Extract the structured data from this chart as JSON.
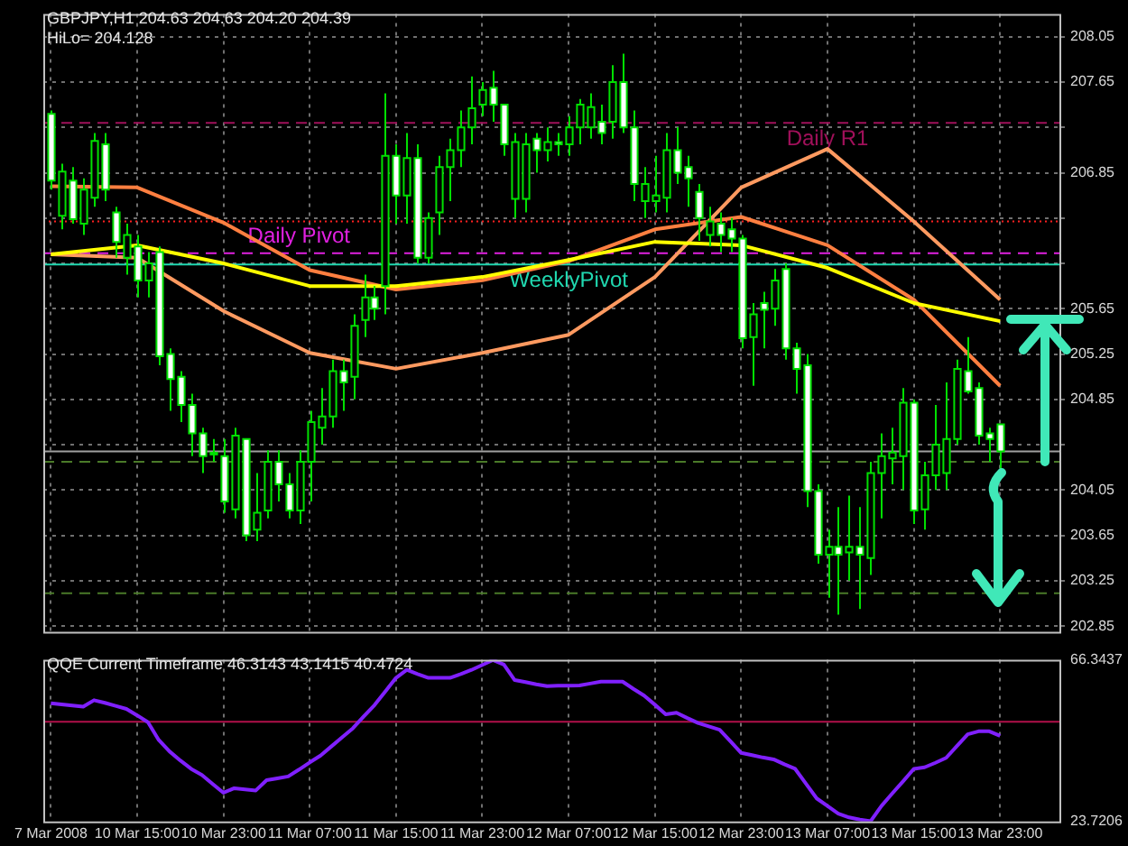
{
  "chart_data": [
    {
      "type": "candlestick",
      "title": "GBPJPY,H1  204.63 204.63 204.20 204.39",
      "annotations": [
        "HiLo= 204.128"
      ],
      "categories": [
        "7 Mar 2008",
        null,
        null,
        null,
        null,
        null,
        null,
        null,
        "10 Mar 15:00",
        null,
        null,
        null,
        null,
        null,
        null,
        null,
        "10 Mar 23:00",
        null,
        null,
        null,
        null,
        null,
        null,
        null,
        "11 Mar 07:00",
        null,
        null,
        null,
        null,
        null,
        null,
        null,
        "11 Mar 15:00",
        null,
        null,
        null,
        null,
        null,
        null,
        null,
        "11 Mar 23:00",
        null,
        null,
        null,
        null,
        null,
        null,
        null,
        "12 Mar 07:00",
        null,
        null,
        null,
        null,
        null,
        null,
        null,
        "12 Mar 15:00",
        null,
        null,
        null,
        null,
        null,
        null,
        null,
        "12 Mar 23:00",
        null,
        null,
        null,
        null,
        null,
        null,
        null,
        "13 Mar 07:00",
        null,
        null,
        null,
        null,
        null,
        null,
        null,
        "13 Mar 15:00",
        null,
        null,
        null,
        null,
        null,
        null,
        null,
        "13 Mar 23:00"
      ],
      "ohlc": [
        [
          207.37,
          207.4,
          206.7,
          206.78
        ],
        [
          206.47,
          206.93,
          206.35,
          206.86
        ],
        [
          206.78,
          206.9,
          206.4,
          206.44
        ],
        [
          206.4,
          206.8,
          206.3,
          206.7
        ],
        [
          206.63,
          207.2,
          206.55,
          207.13
        ],
        [
          207.1,
          207.2,
          206.6,
          206.7
        ],
        [
          206.5,
          206.55,
          206.1,
          206.24
        ],
        [
          206.1,
          206.4,
          205.95,
          206.3
        ],
        [
          206.2,
          206.3,
          205.75,
          205.9
        ],
        [
          205.9,
          206.15,
          205.75,
          206.05
        ],
        [
          206.15,
          206.2,
          205.15,
          205.23
        ],
        [
          205.25,
          205.3,
          204.75,
          205.03
        ],
        [
          205.05,
          205.1,
          204.65,
          204.8
        ],
        [
          204.8,
          204.9,
          204.35,
          204.55
        ],
        [
          204.55,
          204.6,
          204.2,
          204.35
        ],
        [
          204.37,
          204.5,
          204.3,
          204.38
        ],
        [
          204.35,
          204.5,
          203.85,
          203.95
        ],
        [
          203.88,
          204.6,
          203.8,
          204.53
        ],
        [
          204.5,
          204.5,
          203.6,
          203.65
        ],
        [
          203.7,
          204.2,
          203.6,
          203.85
        ],
        [
          203.87,
          204.4,
          203.8,
          204.3
        ],
        [
          204.3,
          204.4,
          203.95,
          204.1
        ],
        [
          204.1,
          204.2,
          203.8,
          203.87
        ],
        [
          203.87,
          204.4,
          203.75,
          204.3
        ],
        [
          204.3,
          204.75,
          203.95,
          204.65
        ],
        [
          204.6,
          204.95,
          204.45,
          204.7
        ],
        [
          204.7,
          205.2,
          204.6,
          205.1
        ],
        [
          205.1,
          205.2,
          204.75,
          205.0
        ],
        [
          205.05,
          205.6,
          204.85,
          205.5
        ],
        [
          205.55,
          205.95,
          205.4,
          205.75
        ],
        [
          205.75,
          205.85,
          205.55,
          205.65
        ],
        [
          205.85,
          207.55,
          205.6,
          207.0
        ],
        [
          207.0,
          207.1,
          206.4,
          206.65
        ],
        [
          206.65,
          207.2,
          206.4,
          206.98
        ],
        [
          206.98,
          207.1,
          206.05,
          206.1
        ],
        [
          206.1,
          206.5,
          206.05,
          206.45
        ],
        [
          206.5,
          207.0,
          206.3,
          206.9
        ],
        [
          206.9,
          207.15,
          206.6,
          207.05
        ],
        [
          207.05,
          207.4,
          206.9,
          207.25
        ],
        [
          207.25,
          207.7,
          207.1,
          207.42
        ],
        [
          207.45,
          207.65,
          207.35,
          207.58
        ],
        [
          207.6,
          207.75,
          207.3,
          207.45
        ],
        [
          207.45,
          207.45,
          207.0,
          207.1
        ],
        [
          206.62,
          207.2,
          206.45,
          207.12
        ],
        [
          206.62,
          207.2,
          206.5,
          207.1
        ],
        [
          207.15,
          207.2,
          206.85,
          207.05
        ],
        [
          207.05,
          207.25,
          206.95,
          207.12
        ],
        [
          207.12,
          207.2,
          207.0,
          207.1
        ],
        [
          207.1,
          207.35,
          207.0,
          207.25
        ],
        [
          207.25,
          207.5,
          207.1,
          207.45
        ],
        [
          207.25,
          207.55,
          207.15,
          207.43
        ],
        [
          207.3,
          207.45,
          207.1,
          207.2
        ],
        [
          207.3,
          207.8,
          207.15,
          207.65
        ],
        [
          207.65,
          207.9,
          207.2,
          207.25
        ],
        [
          207.25,
          207.4,
          206.6,
          206.75
        ],
        [
          206.6,
          206.9,
          206.45,
          206.75
        ],
        [
          206.6,
          207.0,
          206.5,
          206.65
        ],
        [
          206.63,
          207.2,
          206.5,
          207.05
        ],
        [
          207.05,
          207.25,
          206.75,
          206.85
        ],
        [
          206.9,
          207.0,
          206.55,
          206.8
        ],
        [
          206.68,
          206.75,
          206.25,
          206.45
        ],
        [
          206.3,
          206.55,
          206.2,
          206.42
        ],
        [
          206.4,
          206.5,
          206.15,
          206.3
        ],
        [
          206.35,
          206.45,
          206.15,
          206.27
        ],
        [
          206.27,
          206.3,
          205.3,
          205.39
        ],
        [
          205.4,
          205.7,
          204.97,
          205.6
        ],
        [
          205.7,
          205.8,
          205.3,
          205.64
        ],
        [
          205.65,
          206.0,
          205.5,
          205.9
        ],
        [
          206.0,
          206.05,
          205.2,
          205.3
        ],
        [
          205.3,
          205.35,
          204.9,
          205.12
        ],
        [
          205.15,
          205.25,
          203.9,
          204.04
        ],
        [
          204.04,
          204.1,
          203.4,
          203.48
        ],
        [
          203.48,
          203.7,
          203.1,
          203.55
        ],
        [
          203.55,
          203.9,
          202.95,
          203.48
        ],
        [
          203.5,
          204.0,
          203.25,
          203.55
        ],
        [
          203.55,
          203.9,
          203.0,
          203.48
        ],
        [
          203.45,
          204.3,
          203.3,
          204.2
        ],
        [
          204.2,
          204.55,
          203.8,
          204.35
        ],
        [
          204.33,
          204.6,
          204.1,
          204.38
        ],
        [
          204.35,
          204.95,
          204.05,
          204.82
        ],
        [
          204.82,
          204.85,
          203.75,
          203.87
        ],
        [
          203.88,
          204.3,
          203.7,
          204.18
        ],
        [
          204.18,
          204.8,
          204.05,
          204.45
        ],
        [
          204.2,
          205.0,
          204.05,
          204.5
        ],
        [
          204.5,
          205.2,
          204.45,
          205.12
        ],
        [
          205.1,
          205.4,
          204.9,
          204.92
        ],
        [
          204.95,
          205.0,
          204.45,
          204.53
        ],
        [
          204.55,
          204.6,
          204.3,
          204.5
        ],
        [
          204.63,
          204.63,
          204.2,
          204.39
        ]
      ],
      "series": [
        {
          "type": "line",
          "color": "#ffff00",
          "x": [
            "7 Mar 2008",
            "10 Mar 15:00",
            "10 Mar 23:00",
            "11 Mar 07:00",
            "11 Mar 15:00",
            "11 Mar 23:00",
            "12 Mar 07:00",
            "12 Mar 15:00",
            "12 Mar 23:00",
            "13 Mar 07:00",
            "13 Mar 15:00",
            "13 Mar 23:00"
          ],
          "values": [
            206.13,
            206.21,
            206.05,
            205.85,
            205.85,
            205.93,
            206.08,
            206.24,
            206.21,
            206.01,
            205.7,
            205.54
          ]
        },
        {
          "type": "line",
          "color": "#ff7f40",
          "x": [
            "7 Mar 2008",
            "10 Mar 15:00",
            "10 Mar 23:00",
            "11 Mar 07:00",
            "11 Mar 15:00",
            "11 Mar 23:00",
            "12 Mar 07:00",
            "12 Mar 15:00",
            "12 Mar 23:00",
            "13 Mar 07:00",
            "13 Mar 15:00",
            "13 Mar 23:00"
          ],
          "values": [
            206.73,
            206.72,
            206.41,
            205.99,
            205.82,
            205.9,
            206.07,
            206.35,
            206.46,
            206.21,
            205.73,
            204.97
          ]
        },
        {
          "type": "line",
          "color": "#ff9a60",
          "x": [
            "7 Mar 2008",
            "10 Mar 15:00",
            "10 Mar 23:00",
            "11 Mar 07:00",
            "11 Mar 15:00",
            "11 Mar 23:00",
            "12 Mar 07:00",
            "12 Mar 15:00",
            "12 Mar 23:00",
            "13 Mar 07:00",
            "13 Mar 15:00",
            "13 Mar 23:00"
          ],
          "values": [
            206.13,
            206.1,
            205.63,
            205.26,
            205.12,
            205.26,
            205.42,
            205.93,
            206.72,
            207.06,
            206.42,
            205.73
          ]
        }
      ],
      "ref_lines": [
        {
          "axis": "y",
          "value": 206.04,
          "label": "WeeklyPivot",
          "color": "#20d8b0",
          "line_style": "solid"
        },
        {
          "axis": "y",
          "value": 206.14,
          "label": "Daily Pivot",
          "color": "#e020e0",
          "line_style": "dashed"
        },
        {
          "axis": "y",
          "value": 207.29,
          "label": "Daily R1",
          "color": "#a0105a",
          "line_style": "dashed"
        },
        {
          "axis": "y",
          "value": 206.42,
          "color": "#ff2020",
          "line_style": "dotted"
        },
        {
          "axis": "y",
          "value": 204.39,
          "color": "#a0a0a0",
          "line_style": "solid"
        },
        {
          "axis": "y",
          "value": 204.3,
          "color": "#4a7a28",
          "line_style": "dashed"
        },
        {
          "axis": "y",
          "value": 203.14,
          "color": "#4a7a28",
          "line_style": "dashed"
        }
      ],
      "ylim": [
        202.8,
        208.25
      ],
      "yticks": [
        202.85,
        203.25,
        203.65,
        204.05,
        {
          "value": 204.45,
          "label": null
        },
        204.85,
        205.25,
        205.65,
        {
          "value": 206.05,
          "label": null
        },
        {
          "value": 206.45,
          "label": null
        },
        206.85,
        {
          "value": 207.25,
          "label": null
        },
        207.65,
        208.05
      ],
      "grid": true,
      "tick_labels": "y"
    },
    {
      "type": "line",
      "title": "QQE Current Timeframe 46.3143 43.1415 40.4724",
      "categories": [
        "7 Mar 2008",
        null,
        null,
        null,
        null,
        null,
        null,
        null,
        "10 Mar 15:00",
        null,
        null,
        null,
        null,
        null,
        null,
        null,
        "10 Mar 23:00",
        null,
        null,
        null,
        null,
        null,
        null,
        null,
        "11 Mar 07:00",
        null,
        null,
        null,
        null,
        null,
        null,
        null,
        "11 Mar 15:00",
        null,
        null,
        null,
        null,
        null,
        null,
        null,
        "11 Mar 23:00",
        null,
        null,
        null,
        null,
        null,
        null,
        null,
        "12 Mar 07:00",
        null,
        null,
        null,
        null,
        null,
        null,
        null,
        "12 Mar 15:00",
        null,
        null,
        null,
        null,
        null,
        null,
        null,
        "12 Mar 23:00",
        null,
        null,
        null,
        null,
        null,
        null,
        null,
        "13 Mar 07:00",
        null,
        null,
        null,
        null,
        null,
        null,
        null,
        "13 Mar 15:00",
        null,
        null,
        null,
        null,
        null,
        null,
        null,
        "13 Mar 23:00"
      ],
      "series": [
        {
          "type": "line",
          "color": "#8020ff",
          "values": [
            54.9,
            54.6,
            54.3,
            54.0,
            55.7,
            55.0,
            54.2,
            53.4,
            51.7,
            49.9,
            45.2,
            42.2,
            39.8,
            37.6,
            36.0,
            33.6,
            31.3,
            32.5,
            32.2,
            31.9,
            34.6,
            35.1,
            35.6,
            37.4,
            39.3,
            41.1,
            43.5,
            45.9,
            48.3,
            51.4,
            54.4,
            58.0,
            61.6,
            63.7,
            62.6,
            61.6,
            61.6,
            61.6,
            62.6,
            63.7,
            65.0,
            66.3,
            65.1,
            61.0,
            60.5,
            59.9,
            59.4,
            59.5,
            59.5,
            59.6,
            60.1,
            60.6,
            60.6,
            60.6,
            58.7,
            56.9,
            54.5,
            52.0,
            52.4,
            51.0,
            49.7,
            48.8,
            47.9,
            44.9,
            41.8,
            41.2,
            40.6,
            40.1,
            38.8,
            37.6,
            33.7,
            29.8,
            27.8,
            25.8,
            24.8,
            24.2,
            23.8,
            27.8,
            31.1,
            34.3,
            37.6,
            38.0,
            39.2,
            40.5,
            43.6,
            46.7,
            47.5,
            47.5,
            46.3
          ]
        }
      ],
      "ref_lines": [
        {
          "axis": "y",
          "value": 50,
          "color": "#b0104a",
          "line_style": "solid"
        }
      ],
      "ylim": [
        23.7206,
        66.3437
      ],
      "yticks": [
        23.7206,
        66.3437
      ],
      "grid": "x"
    }
  ]
}
